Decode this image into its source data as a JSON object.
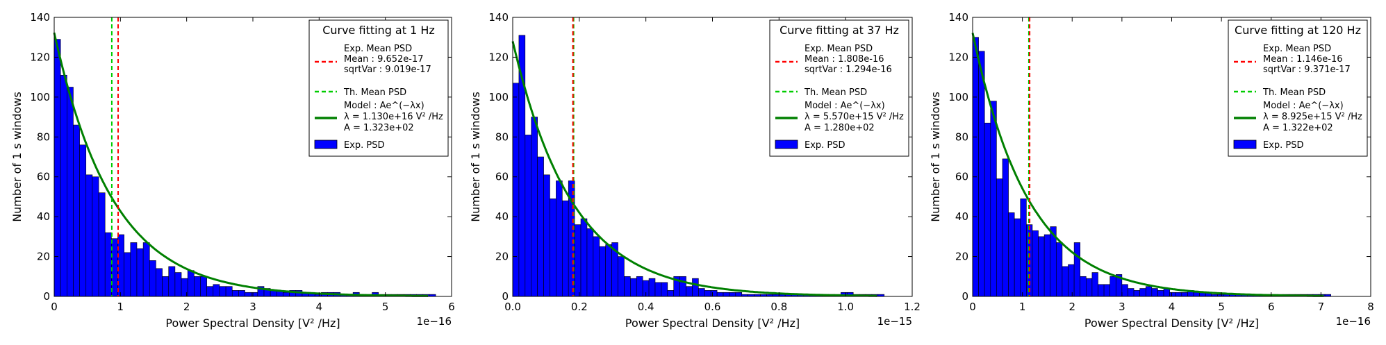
{
  "chart_data": [
    {
      "type": "bar",
      "title": "",
      "xlabel": "Power Spectral Density [V² /Hz]",
      "ylabel": "Number of 1 s windows",
      "xlim": [
        0,
        6
      ],
      "ylim": [
        0,
        140
      ],
      "x_multiplier": "1e−16",
      "x_ticks": [
        "0",
        "1",
        "2",
        "3",
        "4",
        "5",
        "6"
      ],
      "y_ticks": [
        "0",
        "20",
        "40",
        "60",
        "80",
        "100",
        "120",
        "140"
      ],
      "bin_width": 0.096,
      "counts": [
        129,
        111,
        105,
        86,
        76,
        61,
        60,
        52,
        32,
        29,
        31,
        22,
        27,
        24,
        27,
        18,
        14,
        10,
        15,
        12,
        9,
        13,
        10,
        10,
        5,
        6,
        5,
        5,
        3,
        3,
        2,
        2,
        5,
        4,
        3,
        3,
        2,
        3,
        3,
        2,
        2,
        1,
        2,
        2,
        2,
        1,
        1,
        2,
        1,
        1,
        2,
        1,
        1,
        1,
        1,
        1,
        1,
        1,
        1,
        1
      ],
      "th_mean": 0.87,
      "exp_mean": 0.9652,
      "fit": {
        "A": 132.3,
        "lambda": 1.13
      },
      "legend": {
        "title": "Curve fitting at 1 Hz",
        "exp_mean": [
          "Exp. Mean PSD",
          " Mean : 9.652e-17",
          " sqrtVar : 9.019e-17"
        ],
        "th_mean": "Th. Mean PSD",
        "model": [
          "Model : Ae^(−λx)",
          " λ = 1.130e+16 V² /Hz",
          " A = 1.323e+02"
        ],
        "hist": "Exp. PSD"
      }
    },
    {
      "type": "bar",
      "title": "",
      "xlabel": "Power Spectral Density [V² /Hz]",
      "ylabel": "Number of 1 s windows",
      "xlim": [
        0,
        1.2
      ],
      "ylim": [
        0,
        140
      ],
      "x_multiplier": "1e−15",
      "x_ticks": [
        "0.0",
        "0.2",
        "0.4",
        "0.6",
        "0.8",
        "1.0",
        "1.2"
      ],
      "y_ticks": [
        "0",
        "20",
        "40",
        "60",
        "80",
        "100",
        "120",
        "140"
      ],
      "bin_width": 0.0186,
      "counts": [
        107,
        131,
        81,
        90,
        70,
        61,
        49,
        58,
        48,
        58,
        36,
        39,
        34,
        30,
        25,
        26,
        27,
        20,
        10,
        9,
        10,
        8,
        9,
        7,
        7,
        3,
        10,
        10,
        5,
        9,
        4,
        3,
        3,
        2,
        2,
        2,
        2,
        1,
        1,
        1,
        1,
        1,
        1,
        1,
        1,
        1,
        1,
        1,
        1,
        1,
        1,
        1,
        1,
        2,
        2,
        1,
        1,
        1,
        1,
        1
      ],
      "th_mean": 0.183,
      "exp_mean": 0.1808,
      "fit": {
        "A": 128.0,
        "lambda": 5.57
      },
      "legend": {
        "title": "Curve fitting at 37 Hz",
        "exp_mean": [
          "Exp. Mean PSD",
          " Mean : 1.808e-16",
          " sqrtVar : 1.294e-16"
        ],
        "th_mean": "Th. Mean PSD",
        "model": [
          "Model : Ae^(−λx)",
          " λ = 5.570e+15 V² /Hz",
          " A = 1.280e+02"
        ],
        "hist": "Exp. PSD"
      }
    },
    {
      "type": "bar",
      "title": "",
      "xlabel": "Power Spectral Density [V² /Hz]",
      "ylabel": "Number of 1 s windows",
      "xlim": [
        0,
        8
      ],
      "ylim": [
        0,
        140
      ],
      "x_multiplier": "1e−16",
      "x_ticks": [
        "0",
        "1",
        "2",
        "3",
        "4",
        "5",
        "6",
        "7",
        "8"
      ],
      "y_ticks": [
        "0",
        "20",
        "40",
        "60",
        "80",
        "100",
        "120",
        "140"
      ],
      "bin_width": 0.12,
      "counts": [
        130,
        123,
        87,
        98,
        59,
        69,
        42,
        39,
        49,
        36,
        33,
        30,
        31,
        35,
        27,
        15,
        16,
        27,
        10,
        9,
        12,
        6,
        6,
        10,
        11,
        6,
        4,
        3,
        4,
        5,
        4,
        3,
        4,
        2,
        2,
        2,
        3,
        2,
        2,
        2,
        1,
        1,
        1,
        1,
        1,
        1,
        1,
        1,
        1,
        1,
        1,
        1,
        1,
        1,
        1,
        1,
        1,
        1,
        1,
        1
      ],
      "th_mean": 1.13,
      "exp_mean": 1.146,
      "fit": {
        "A": 132.2,
        "lambda": 0.8925
      },
      "legend": {
        "title": "Curve fitting at 120 Hz",
        "exp_mean": [
          "Exp. Mean PSD",
          " Mean : 1.146e-16",
          " sqrtVar : 9.371e-17"
        ],
        "th_mean": "Th. Mean PSD",
        "model": [
          "Model : Ae^(−λx)",
          " λ = 8.925e+15 V² /Hz",
          " A = 1.322e+02"
        ],
        "hist": "Exp. PSD"
      }
    }
  ],
  "colors": {
    "hist": "#0000ff",
    "fit": "#008000",
    "exp_mean": "#ff0000",
    "th_mean": "#00cc00"
  }
}
